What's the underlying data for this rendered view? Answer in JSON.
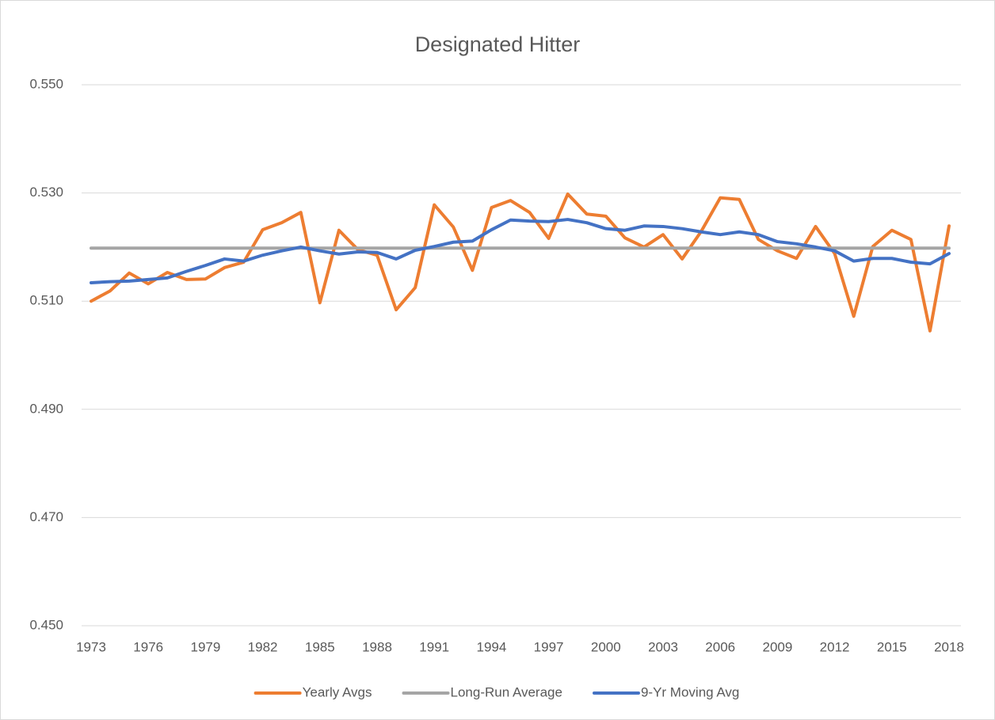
{
  "chart_data": {
    "type": "line",
    "title": "Designated Hitter",
    "x": [
      1973,
      1974,
      1975,
      1976,
      1977,
      1978,
      1979,
      1980,
      1981,
      1982,
      1983,
      1984,
      1985,
      1986,
      1987,
      1988,
      1989,
      1990,
      1991,
      1992,
      1993,
      1994,
      1995,
      1996,
      1997,
      1998,
      1999,
      2000,
      2001,
      2002,
      2003,
      2004,
      2005,
      2006,
      2007,
      2008,
      2009,
      2010,
      2011,
      2012,
      2013,
      2014,
      2015,
      2016,
      2017,
      2018
    ],
    "series": [
      {
        "name": "Yearly Avgs",
        "color": "#ed7d31",
        "values": [
          0.51,
          0.5119,
          0.5152,
          0.5132,
          0.5153,
          0.514,
          0.5141,
          0.5162,
          0.5172,
          0.5232,
          0.5245,
          0.5264,
          0.5097,
          0.5231,
          0.5195,
          0.5185,
          0.5084,
          0.5125,
          0.5278,
          0.5237,
          0.5157,
          0.5273,
          0.5286,
          0.5264,
          0.5216,
          0.5298,
          0.5261,
          0.5257,
          0.5217,
          0.52,
          0.5223,
          0.5178,
          0.5229,
          0.5291,
          0.5288,
          0.5214,
          0.5193,
          0.5179,
          0.5238,
          0.5188,
          0.5072,
          0.5201,
          0.5231,
          0.5214,
          0.5045,
          0.5239
        ]
      },
      {
        "name": "Long-Run Average",
        "color": "#a5a5a5",
        "values": [
          0.5198,
          0.5198,
          0.5198,
          0.5198,
          0.5198,
          0.5198,
          0.5198,
          0.5198,
          0.5198,
          0.5198,
          0.5198,
          0.5198,
          0.5198,
          0.5198,
          0.5198,
          0.5198,
          0.5198,
          0.5198,
          0.5198,
          0.5198,
          0.5198,
          0.5198,
          0.5198,
          0.5198,
          0.5198,
          0.5198,
          0.5198,
          0.5198,
          0.5198,
          0.5198,
          0.5198,
          0.5198,
          0.5198,
          0.5198,
          0.5198,
          0.5198,
          0.5198,
          0.5198,
          0.5198,
          0.5198,
          0.5198,
          0.5198,
          0.5198,
          0.5198,
          0.5198,
          0.5198
        ]
      },
      {
        "name": "9-Yr Moving Avg",
        "color": "#4472c4",
        "values": [
          0.5134,
          0.5136,
          0.5137,
          0.514,
          0.5143,
          0.5155,
          0.5166,
          0.5178,
          0.5174,
          0.5185,
          0.5193,
          0.52,
          0.5193,
          0.5187,
          0.5191,
          0.519,
          0.5178,
          0.5194,
          0.5201,
          0.5209,
          0.5211,
          0.5232,
          0.525,
          0.5248,
          0.5247,
          0.5251,
          0.5245,
          0.5234,
          0.5231,
          0.5239,
          0.5238,
          0.5234,
          0.5228,
          0.5223,
          0.5228,
          0.5223,
          0.521,
          0.5206,
          0.52,
          0.5193,
          0.5174,
          0.5179,
          0.5179,
          0.5172,
          0.5169,
          0.5188
        ]
      }
    ],
    "xlim": [
      1973,
      2018
    ],
    "xticks": [
      1973,
      1976,
      1979,
      1982,
      1985,
      1988,
      1991,
      1994,
      1997,
      2000,
      2003,
      2006,
      2009,
      2012,
      2015,
      2018
    ],
    "ylim": [
      0.45,
      0.55
    ],
    "yticks": [
      {
        "value": 0.45,
        "label": "0.450"
      },
      {
        "value": 0.47,
        "label": "0.470"
      },
      {
        "value": 0.49,
        "label": "0.490"
      },
      {
        "value": 0.51,
        "label": "0.510"
      },
      {
        "value": 0.53,
        "label": "0.530"
      },
      {
        "value": 0.55,
        "label": "0.550"
      }
    ],
    "grid": true,
    "legend": "bottom"
  }
}
